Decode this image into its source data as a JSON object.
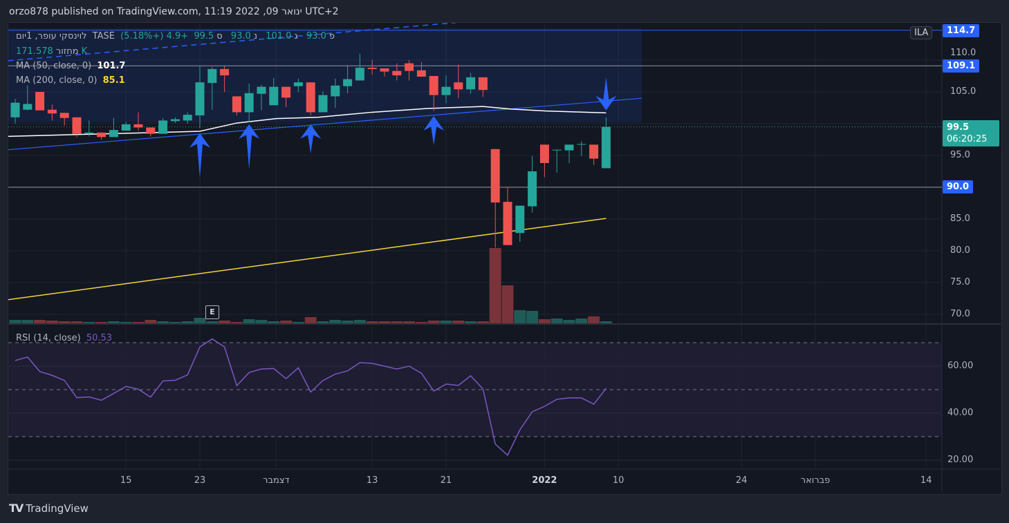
{
  "publish_line": "orzo878 published on TradingView.com, 11:19 2022 ,09 ינואר UTC+2",
  "legend": {
    "symbol": "לוינסקי עופר, 1יום",
    "exchange": "TASE",
    "open_label": "פ",
    "open": "93.0",
    "high_label": "ג",
    "high": "101.0",
    "low_label": "נ",
    "low": "93.0",
    "close_label": "ס",
    "close": "99.5",
    "change": "+4.9 (+5.18%)",
    "volume_label": "מחזור",
    "volume": "171.578K",
    "ma50_label": "MA (50, close, 0)",
    "ma50_value": "101.7",
    "ma200_label": "MA (200, close, 0)",
    "ma200_value": "85.1",
    "rsi_label": "RSI (14, close)",
    "rsi_value": "50.53"
  },
  "currency_badge": "ILA",
  "earnings_marker": "E",
  "price_tags": {
    "top": "114.7",
    "mid": "109.1",
    "low": "90.0",
    "last": "99.5",
    "countdown": "06:20:25"
  },
  "footer_brand": "TradingView",
  "colors": {
    "up": "#26a69a",
    "down": "#ef5350",
    "ma50": "#ffffff",
    "ma200": "#f5d638",
    "drawing": "#2962ff",
    "rsi": "#7e57c2"
  },
  "chart_data": [
    {
      "type": "candlestick",
      "ylim": [
        68,
        116
      ],
      "price_ticks": [
        "110.0",
        "105.0",
        "95.0",
        "85.0",
        "80.0",
        "75.0",
        "70.0"
      ],
      "x_ticks": [
        {
          "label": "15",
          "bar": 9
        },
        {
          "label": "23",
          "bar": 15
        },
        {
          "label": "דצמבר",
          "bar": 21.2
        },
        {
          "label": "13",
          "bar": 29
        },
        {
          "label": "21",
          "bar": 35
        },
        {
          "label": "2022",
          "bar": 43,
          "bold": true
        },
        {
          "label": "10",
          "bar": 49
        },
        {
          "label": "24",
          "bar": 59
        },
        {
          "label": "פברואר",
          "bar": 65
        },
        {
          "label": "14",
          "bar": 74
        }
      ],
      "ohlc": [
        [
          101.0,
          103.9,
          100.0,
          103.3
        ],
        [
          102.2,
          106.0,
          102.1,
          103.1
        ],
        [
          105.0,
          105.0,
          102.1,
          102.1
        ],
        [
          102.2,
          103.0,
          100.5,
          101.6
        ],
        [
          101.7,
          101.7,
          99.7,
          100.9
        ],
        [
          101.0,
          101.0,
          97.9,
          98.4
        ],
        [
          98.4,
          100.5,
          98.0,
          98.6
        ],
        [
          98.6,
          98.6,
          97.5,
          97.9
        ],
        [
          97.9,
          100.9,
          97.9,
          99.0
        ],
        [
          98.9,
          100.3,
          98.9,
          99.9
        ],
        [
          99.9,
          101.8,
          98.9,
          99.4
        ],
        [
          99.4,
          99.4,
          98.0,
          98.4
        ],
        [
          98.4,
          100.9,
          98.4,
          100.5
        ],
        [
          100.4,
          101.0,
          100.1,
          100.7
        ],
        [
          100.5,
          101.8,
          100.0,
          101.4
        ],
        [
          101.3,
          109.1,
          99.3,
          106.5
        ],
        [
          106.4,
          108.9,
          102.2,
          108.6
        ],
        [
          108.6,
          109.1,
          105.0,
          107.6
        ],
        [
          104.3,
          104.3,
          101.3,
          101.8
        ],
        [
          101.8,
          106.3,
          100.2,
          104.8
        ],
        [
          104.7,
          106.1,
          102.1,
          105.8
        ],
        [
          102.9,
          107.2,
          102.9,
          105.8
        ],
        [
          105.8,
          105.8,
          102.6,
          104.1
        ],
        [
          105.9,
          107.1,
          105.0,
          106.5
        ],
        [
          106.5,
          106.5,
          101.3,
          101.8
        ],
        [
          101.8,
          105.1,
          101.8,
          104.5
        ],
        [
          104.3,
          107.1,
          102.5,
          106.0
        ],
        [
          105.9,
          109.2,
          104.8,
          107.0
        ],
        [
          106.8,
          111.0,
          106.8,
          108.8
        ],
        [
          108.8,
          110.0,
          107.7,
          108.6
        ],
        [
          108.7,
          108.7,
          107.4,
          108.2
        ],
        [
          108.3,
          109.5,
          106.8,
          107.6
        ],
        [
          109.5,
          110.0,
          106.8,
          108.3
        ],
        [
          108.4,
          109.7,
          107.4,
          107.4
        ],
        [
          107.5,
          107.5,
          102.0,
          104.5
        ],
        [
          104.5,
          107.6,
          103.2,
          105.8
        ],
        [
          106.5,
          109.3,
          104.0,
          105.4
        ],
        [
          105.4,
          108.0,
          104.7,
          107.3
        ],
        [
          107.3,
          107.3,
          104.2,
          105.3
        ],
        [
          96.0,
          96.0,
          80.5,
          87.6
        ],
        [
          87.7,
          90.0,
          80.9,
          80.9
        ],
        [
          82.8,
          87.1,
          81.4,
          87.1
        ],
        [
          87.0,
          94.9,
          86.0,
          92.5
        ],
        [
          96.7,
          96.7,
          91.6,
          93.8
        ],
        [
          95.8,
          95.9,
          92.3,
          95.9
        ],
        [
          95.8,
          96.7,
          93.8,
          96.7
        ],
        [
          96.7,
          97.2,
          94.9,
          96.8
        ],
        [
          96.7,
          96.7,
          93.5,
          94.5
        ],
        [
          93.0,
          101.0,
          93.0,
          99.5
        ]
      ],
      "volume_k": [
        286,
        286,
        286,
        229,
        172,
        172,
        114,
        114,
        172,
        114,
        114,
        286,
        172,
        114,
        172,
        457,
        172,
        229,
        114,
        343,
        286,
        172,
        229,
        114,
        515,
        172,
        286,
        229,
        286,
        172,
        172,
        172,
        172,
        114,
        229,
        229,
        229,
        172,
        172,
        6233,
        3145,
        1086,
        1029,
        343,
        400,
        286,
        400,
        572,
        171.578
      ],
      "ma50": [
        [
          -0.6,
          98.0
        ],
        [
          15,
          98.8
        ],
        [
          18,
          100.1
        ],
        [
          21.2,
          100.8
        ],
        [
          24.6,
          101.0
        ],
        [
          29,
          101.8
        ],
        [
          33.6,
          102.4
        ],
        [
          38,
          102.7
        ],
        [
          40.3,
          102.3
        ],
        [
          43.1,
          102.0
        ],
        [
          48,
          101.7
        ]
      ],
      "ma200": [
        [
          -0.6,
          72.3
        ],
        [
          48,
          85.1
        ]
      ],
      "drawings": {
        "horizontal_lines": [
          114.7,
          109.1,
          90.0
        ],
        "trend_line": [
          [
            -0.6,
            95.9
          ],
          [
            50.9,
            104.0
          ]
        ],
        "dashed_line": [
          [
            -0.6,
            109.9
          ],
          [
            35.8,
            115.9
          ]
        ],
        "range_box": {
          "from_bar": -0.6,
          "to_bar": 50.9,
          "top": 115.0,
          "bottom": 100.2
        },
        "arrows": [
          {
            "dir": "up",
            "bar": 15,
            "tip": 98.5,
            "tail": 91.4
          },
          {
            "dir": "up",
            "bar": 19,
            "tip": 99.9,
            "tail": 92.8
          },
          {
            "dir": "up",
            "bar": 24,
            "tip": 99.9,
            "tail": 95.3
          },
          {
            "dir": "up",
            "bar": 34,
            "tip": 101.2,
            "tail": 96.6
          },
          {
            "dir": "down",
            "bar": 48,
            "tip": 102.1,
            "tail": 107.3
          }
        ]
      }
    },
    {
      "type": "line",
      "name": "RSI (14, close)",
      "ylim": [
        16,
        73
      ],
      "y_ticks": [
        "60.00",
        "40.00",
        "20.00"
      ],
      "bands": [
        70,
        50,
        30
      ],
      "values": [
        62.4,
        63.9,
        57.7,
        56.1,
        53.9,
        46.6,
        46.9,
        45.5,
        48.4,
        51.4,
        50.2,
        46.8,
        53.7,
        54.0,
        56.3,
        68.2,
        71.6,
        68.2,
        51.7,
        57.3,
        58.8,
        59.0,
        54.7,
        59.3,
        49.0,
        53.9,
        56.6,
        58.0,
        61.5,
        61.2,
        60.0,
        58.8,
        60.0,
        57.0,
        49.4,
        52.4,
        51.8,
        55.9,
        50.3,
        26.8,
        22.1,
        32.9,
        40.6,
        42.9,
        45.9,
        46.5,
        46.5,
        43.8,
        50.53
      ]
    }
  ]
}
